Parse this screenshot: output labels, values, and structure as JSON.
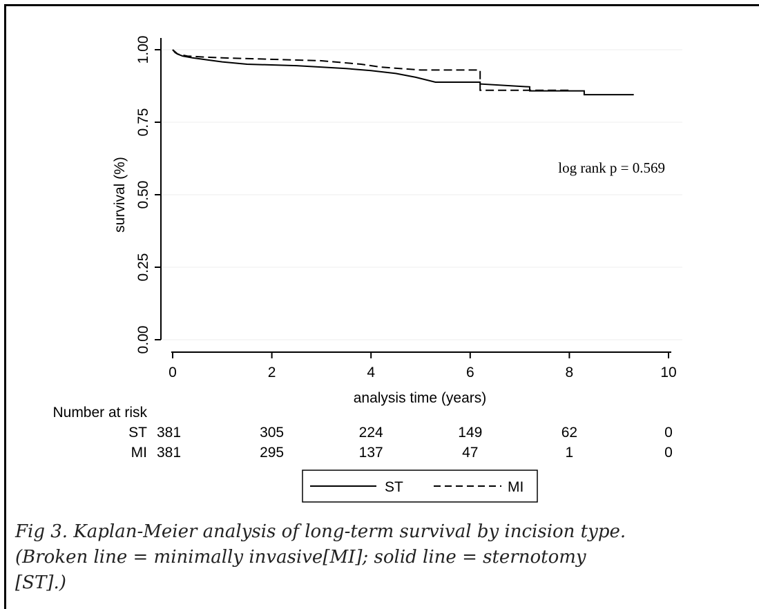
{
  "chart_data": {
    "type": "line",
    "xlabel": "analysis time (years)",
    "ylabel": "survival (%)",
    "xlim": [
      0,
      10
    ],
    "ylim": [
      0,
      1
    ],
    "x_ticks": [
      "0",
      "2",
      "4",
      "6",
      "8",
      "10"
    ],
    "y_ticks": [
      "0.00",
      "0.25",
      "0.50",
      "0.75",
      "1.00"
    ],
    "grid": "horizontal",
    "annotation": "log rank p = 0.569",
    "series": [
      {
        "name": "ST",
        "style": "solid",
        "color": "#000000",
        "points": [
          [
            0,
            1.0
          ],
          [
            0.05,
            0.99
          ],
          [
            0.1,
            0.985
          ],
          [
            0.2,
            0.978
          ],
          [
            0.4,
            0.972
          ],
          [
            0.7,
            0.965
          ],
          [
            1.0,
            0.958
          ],
          [
            1.5,
            0.95
          ],
          [
            2.5,
            0.945
          ],
          [
            3.5,
            0.935
          ],
          [
            4.0,
            0.928
          ],
          [
            4.5,
            0.918
          ],
          [
            4.9,
            0.905
          ],
          [
            5.3,
            0.888
          ],
          [
            6.2,
            0.888
          ],
          [
            6.2,
            0.882
          ],
          [
            7.2,
            0.872
          ],
          [
            7.2,
            0.858
          ],
          [
            8.3,
            0.858
          ],
          [
            8.3,
            0.845
          ],
          [
            9.3,
            0.845
          ]
        ]
      },
      {
        "name": "MI",
        "style": "dashed",
        "color": "#000000",
        "points": [
          [
            0,
            1.0
          ],
          [
            0.1,
            0.985
          ],
          [
            0.3,
            0.978
          ],
          [
            0.6,
            0.975
          ],
          [
            1.0,
            0.972
          ],
          [
            3.0,
            0.962
          ],
          [
            3.8,
            0.95
          ],
          [
            4.2,
            0.94
          ],
          [
            5.0,
            0.93
          ],
          [
            6.2,
            0.93
          ],
          [
            6.2,
            0.86
          ],
          [
            8.0,
            0.86
          ]
        ]
      }
    ],
    "risk_table": {
      "title": "Number at risk",
      "times": [
        0,
        2,
        4,
        6,
        8,
        10
      ],
      "rows": [
        {
          "label": "ST",
          "values": [
            "381",
            "305",
            "224",
            "149",
            "62",
            "0"
          ]
        },
        {
          "label": "MI",
          "values": [
            "381",
            "295",
            "137",
            "47",
            "1",
            "0"
          ]
        }
      ]
    },
    "legend": {
      "position": "bottom",
      "entries": [
        "ST",
        "MI"
      ]
    }
  },
  "caption": {
    "lines": [
      "Fig 3.  Kaplan-Meier analysis of long-term survival by incision type.",
      "(Broken line = minimally invasive[MI]; solid line = sternotomy",
      "[ST].)"
    ]
  }
}
